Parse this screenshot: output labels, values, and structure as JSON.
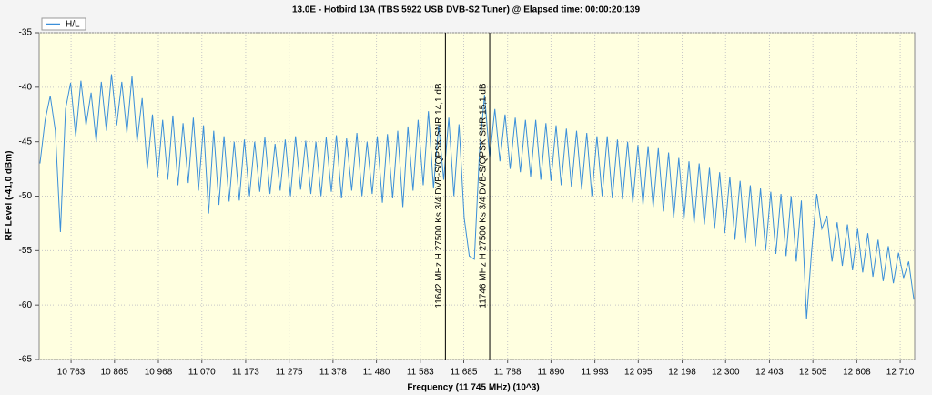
{
  "chart_data": {
    "type": "line",
    "title": "13.0E - Hotbird 13A (TBS 5922 USB DVB-S2 Tuner) @ Elapsed time: 00:00:20:139",
    "xlabel": "Frequency  (11 745 MHz) (10^3)",
    "ylabel": "RF Level (-41,0 dBm)",
    "legend": "top-left",
    "grid": true,
    "xlim": [
      10688,
      12744
    ],
    "ylim": [
      -65,
      -35
    ],
    "yticks": [
      -35,
      -40,
      -45,
      -50,
      -55,
      -60,
      -65
    ],
    "xticks": [
      {
        "value": 10763,
        "label": "10 763"
      },
      {
        "value": 10865,
        "label": "10 865"
      },
      {
        "value": 10968,
        "label": "10 968"
      },
      {
        "value": 11070,
        "label": "11 070"
      },
      {
        "value": 11173,
        "label": "11 173"
      },
      {
        "value": 11275,
        "label": "11 275"
      },
      {
        "value": 11378,
        "label": "11 378"
      },
      {
        "value": 11480,
        "label": "11 480"
      },
      {
        "value": 11583,
        "label": "11 583"
      },
      {
        "value": 11685,
        "label": "11 685"
      },
      {
        "value": 11788,
        "label": "11 788"
      },
      {
        "value": 11890,
        "label": "11 890"
      },
      {
        "value": 11993,
        "label": "11 993"
      },
      {
        "value": 12095,
        "label": "12 095"
      },
      {
        "value": 12198,
        "label": "12 198"
      },
      {
        "value": 12300,
        "label": "12 300"
      },
      {
        "value": 12403,
        "label": "12 403"
      },
      {
        "value": 12505,
        "label": "12 505"
      },
      {
        "value": 12608,
        "label": "12 608"
      },
      {
        "value": 12710,
        "label": "12 710"
      }
    ],
    "annotations": [
      {
        "x": 11642,
        "label": "11642 MHz H 27500 Ks 3/4 DVB-S/QPSK SNR 14,1 dB"
      },
      {
        "x": 11746,
        "label": "11746 MHz H 27500 Ks 3/4 DVB-S/QPSK SNR 15,1 dB"
      }
    ],
    "x": [
      10690,
      10702,
      10714,
      10726,
      10738,
      10750,
      10762,
      10774,
      10786,
      10798,
      10810,
      10822,
      10834,
      10846,
      10858,
      10870,
      10882,
      10894,
      10906,
      10918,
      10930,
      10942,
      10954,
      10966,
      10978,
      10990,
      11002,
      11014,
      11026,
      11038,
      11050,
      11062,
      11074,
      11086,
      11098,
      11110,
      11122,
      11134,
      11146,
      11158,
      11170,
      11182,
      11194,
      11206,
      11218,
      11230,
      11242,
      11254,
      11266,
      11278,
      11290,
      11302,
      11314,
      11326,
      11338,
      11350,
      11362,
      11374,
      11386,
      11398,
      11410,
      11422,
      11434,
      11446,
      11458,
      11470,
      11482,
      11494,
      11506,
      11518,
      11530,
      11542,
      11554,
      11566,
      11578,
      11590,
      11602,
      11614,
      11626,
      11638,
      11650,
      11662,
      11674,
      11686,
      11698,
      11710,
      11722,
      11734,
      11746,
      11758,
      11770,
      11782,
      11794,
      11806,
      11818,
      11830,
      11842,
      11854,
      11866,
      11878,
      11890,
      11902,
      11914,
      11926,
      11938,
      11950,
      11962,
      11974,
      11986,
      11998,
      12010,
      12022,
      12034,
      12046,
      12058,
      12070,
      12082,
      12094,
      12106,
      12118,
      12130,
      12142,
      12154,
      12166,
      12178,
      12190,
      12202,
      12214,
      12226,
      12238,
      12250,
      12262,
      12274,
      12286,
      12298,
      12310,
      12322,
      12334,
      12346,
      12358,
      12370,
      12382,
      12394,
      12406,
      12418,
      12430,
      12442,
      12454,
      12466,
      12478,
      12490,
      12502,
      12514,
      12526,
      12538,
      12550,
      12562,
      12574,
      12586,
      12598,
      12610,
      12622,
      12634,
      12646,
      12658,
      12670,
      12682,
      12694,
      12706,
      12718,
      12730,
      12742
    ],
    "series": [
      {
        "name": "H/L",
        "color": "#3b8fd9",
        "values": [
          -47,
          -43,
          -40.8,
          -44,
          -53.3,
          -42,
          -39.6,
          -44.5,
          -39.4,
          -43.5,
          -40.5,
          -45,
          -39.5,
          -44,
          -38.8,
          -43.5,
          -39.5,
          -44.2,
          -39,
          -45,
          -41,
          -47.5,
          -42.5,
          -48.3,
          -43,
          -48.5,
          -42.6,
          -49,
          -43.3,
          -48.8,
          -42.8,
          -49.5,
          -43.5,
          -51.6,
          -44,
          -50.8,
          -44.5,
          -50.5,
          -45,
          -50.4,
          -44.8,
          -50,
          -45,
          -49.6,
          -44.6,
          -49.8,
          -45.2,
          -49.5,
          -44.8,
          -50,
          -44.5,
          -49.4,
          -44.9,
          -49.8,
          -45,
          -50,
          -44.6,
          -49.6,
          -44.4,
          -50.2,
          -44.7,
          -49.5,
          -44.2,
          -50,
          -45,
          -49.8,
          -44.5,
          -50.6,
          -44.3,
          -50.2,
          -44,
          -51,
          -43.6,
          -49.5,
          -43,
          -49,
          -42.2,
          -49.3,
          -43.5,
          -48.5,
          -42.8,
          -50,
          -43.4,
          -52,
          -55.5,
          -55.8,
          -46,
          -40.7,
          -46.5,
          -42,
          -46.8,
          -42.5,
          -47.5,
          -42.8,
          -47.8,
          -43,
          -48.2,
          -43,
          -48.5,
          -43.3,
          -48.6,
          -43.5,
          -49,
          -43.8,
          -49.2,
          -44,
          -49.4,
          -44.2,
          -50,
          -44.5,
          -50,
          -44.5,
          -50.2,
          -44.8,
          -50.3,
          -45,
          -50.6,
          -45.3,
          -50.8,
          -45.4,
          -51,
          -45.6,
          -51.4,
          -46,
          -52,
          -46.5,
          -52.2,
          -46.8,
          -52.5,
          -47,
          -52.6,
          -47.4,
          -53,
          -47.8,
          -53.4,
          -48.2,
          -54,
          -48.6,
          -54.3,
          -49,
          -54.6,
          -49.3,
          -55,
          -49.6,
          -55.3,
          -49.8,
          -55.5,
          -50,
          -56,
          -50.4,
          -61.3,
          -55,
          -49.8,
          -53,
          -51.8,
          -56,
          -52.4,
          -56.4,
          -52.6,
          -56.8,
          -53,
          -57,
          -53.4,
          -57.4,
          -54,
          -57.8,
          -54.6,
          -58,
          -55.2,
          -57.5,
          -56,
          -59.5
        ]
      }
    ]
  }
}
